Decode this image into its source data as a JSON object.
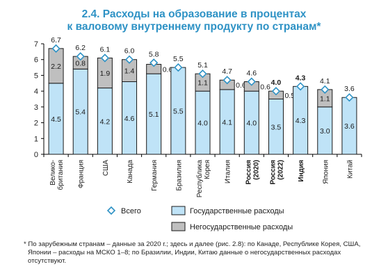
{
  "title_line1": "2.4. Расходы на образование в процентах",
  "title_line2": "к валовому внутреннему продукту по странам*",
  "chart_data": {
    "type": "bar",
    "stacked": true,
    "categories": [
      [
        "Велико-",
        "британия"
      ],
      [
        "Франция"
      ],
      [
        "США"
      ],
      [
        "Канада"
      ],
      [
        "Германия"
      ],
      [
        "Бразилия"
      ],
      [
        "Республика",
        "Корея"
      ],
      [
        "Италия"
      ],
      [
        "Россия",
        "(2020)"
      ],
      [
        "Россия",
        "(2022)"
      ],
      [
        "Индия"
      ],
      [
        "Япония"
      ],
      [
        "Китай"
      ]
    ],
    "bold_categories": [
      8,
      9,
      10
    ],
    "series": [
      {
        "name": "Государственные расходы",
        "color": "#bfe3f7",
        "values": [
          4.5,
          5.4,
          4.2,
          4.6,
          5.1,
          5.5,
          4.0,
          4.1,
          4.0,
          3.5,
          4.3,
          3.0,
          3.6
        ],
        "labels": [
          "4.5",
          "5.4",
          "4.2",
          "4.6",
          "5.1",
          "5.5",
          "4.0",
          "4.1",
          "4.0",
          "3.5",
          "4.3",
          "3.0",
          "3.6"
        ]
      },
      {
        "name": "Негосударственные расходы",
        "color": "#bfbfbf",
        "values": [
          2.2,
          0.8,
          1.9,
          1.4,
          0.6,
          0,
          1.1,
          0.6,
          0.6,
          0.5,
          0,
          1.1,
          0
        ],
        "labels": [
          "2.2",
          "0.8",
          "1.9",
          "1.4",
          "0.6",
          "",
          "1.1",
          "0.6",
          "0.6",
          "0.5",
          "",
          "1.1",
          ""
        ]
      }
    ],
    "total": {
      "name": "Всего",
      "color": "#2e92c5",
      "values": [
        6.7,
        6.2,
        6.1,
        6.0,
        5.8,
        5.5,
        5.1,
        4.7,
        4.6,
        4.0,
        4.3,
        4.1,
        3.6
      ],
      "labels": [
        "6.7",
        "6.2",
        "6.1",
        "6.0",
        "5.8",
        "5.5",
        "5.1",
        "4.7",
        "4.6",
        "4.0",
        "4.3",
        "4.1",
        "3.6"
      ],
      "bold": [
        9,
        10
      ]
    },
    "y_ticks": [
      "0",
      "1",
      "2",
      "3",
      "4",
      "5",
      "6",
      "7"
    ],
    "ylim": [
      0,
      7
    ],
    "grid": false,
    "legend_position": "bottom"
  },
  "footnote": "* По зарубежным странам – данные за 2020 г.; здесь и далее (рис. 2.8): по Канаде, Республике Корея, США, Японии – расходы на МСКО 1–8; по Бразилии, Индии, Китаю данные о негосударственных расходах отсутствуют."
}
